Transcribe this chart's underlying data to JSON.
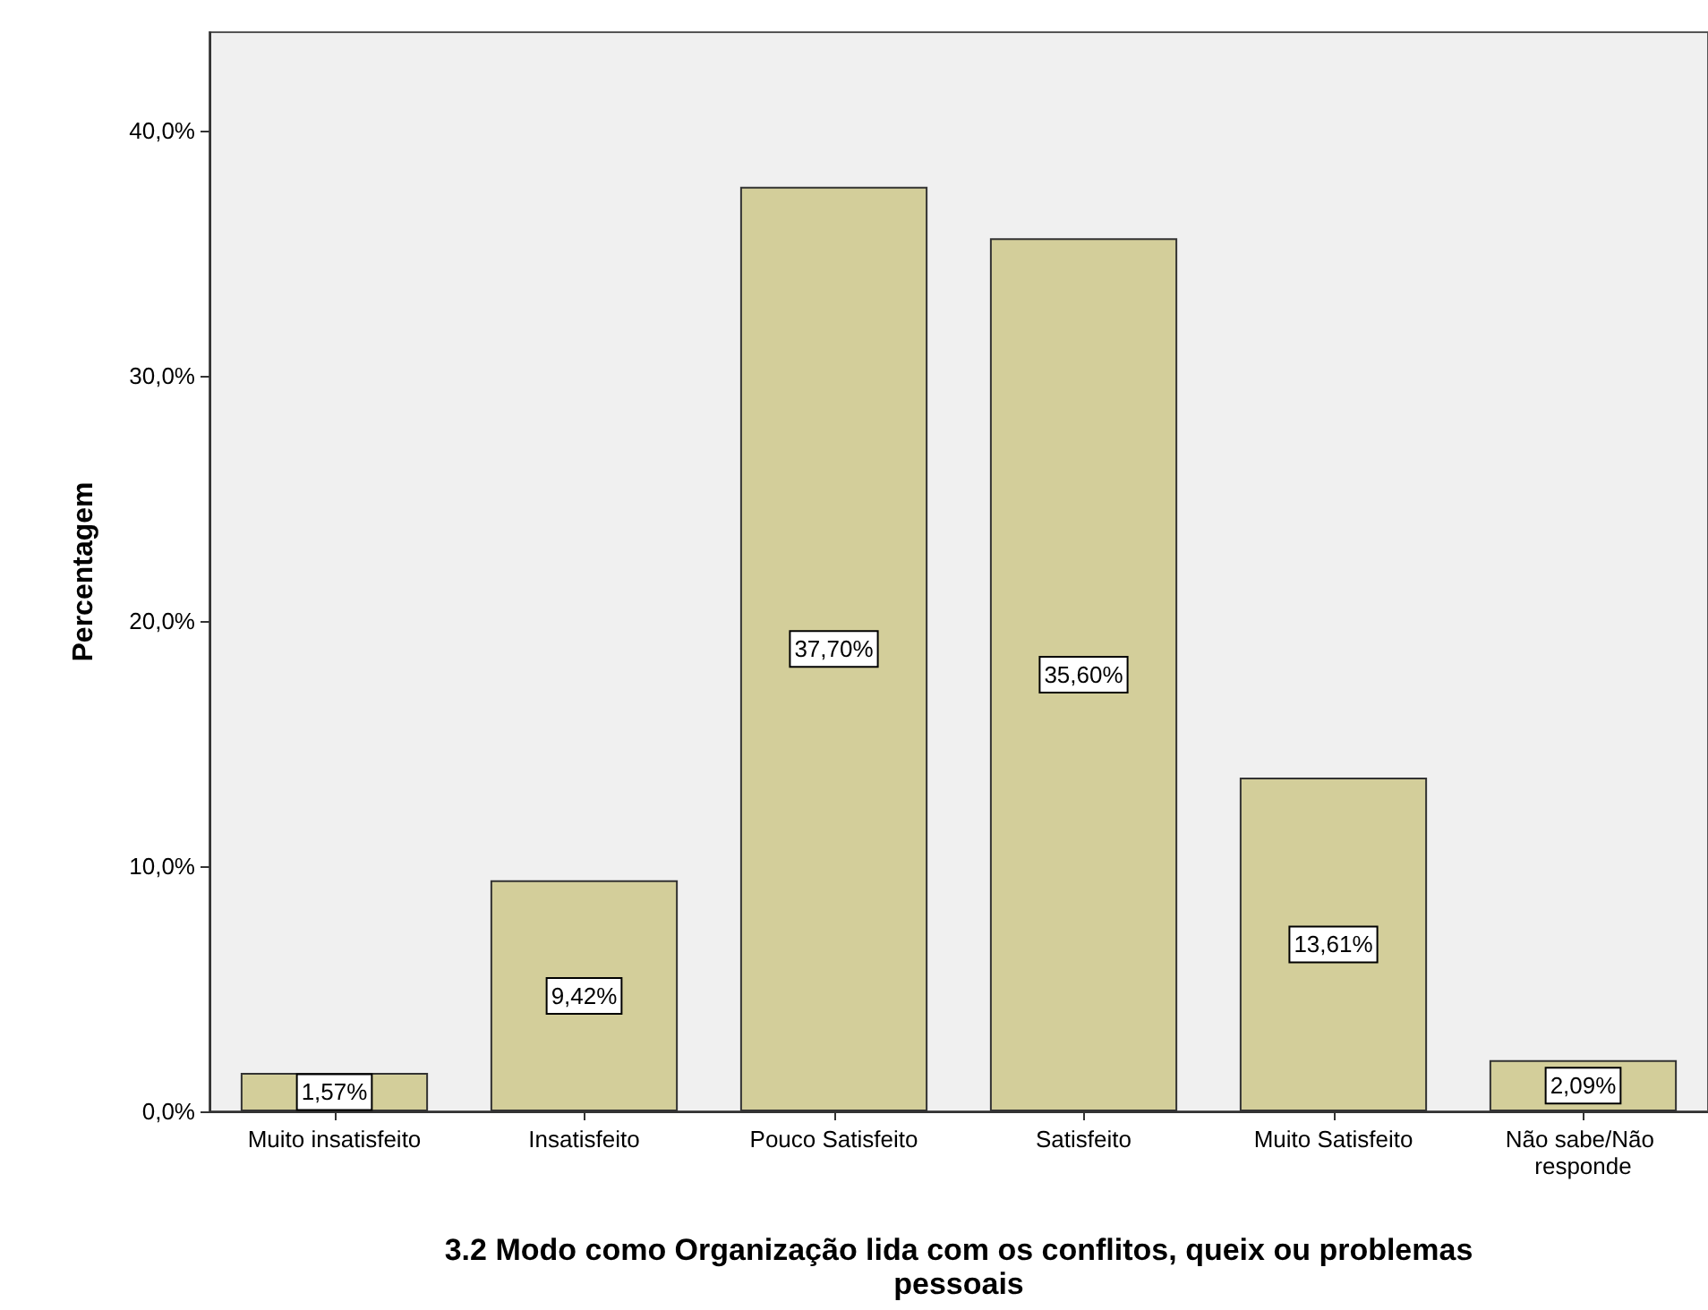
{
  "chart_data": {
    "type": "bar",
    "xlabel": "3.2 Modo como Organização lida com os conflitos, queix ou problemas pessoais",
    "ylabel": "Percentagem",
    "categories": [
      "Muito insatisfeito",
      "Insatisfeito",
      "Pouco Satisfeito",
      "Satisfeito",
      "Muito Satisfeito",
      "Não sabe/Não responde"
    ],
    "values": [
      1.57,
      9.42,
      37.7,
      35.6,
      13.61,
      2.09
    ],
    "value_labels": [
      "1,57%",
      "9,42%",
      "37,70%",
      "35,60%",
      "13,61%",
      "2,09%"
    ],
    "color": "#d3ce9a",
    "ylim": [
      0,
      44
    ],
    "yticks": [
      {
        "value": 0,
        "label": "0,0%"
      },
      {
        "value": 10,
        "label": "10,0%"
      },
      {
        "value": 20,
        "label": "20,0%"
      },
      {
        "value": 30,
        "label": "30,0%"
      },
      {
        "value": 40,
        "label": "40,0%"
      }
    ],
    "grid": false
  }
}
